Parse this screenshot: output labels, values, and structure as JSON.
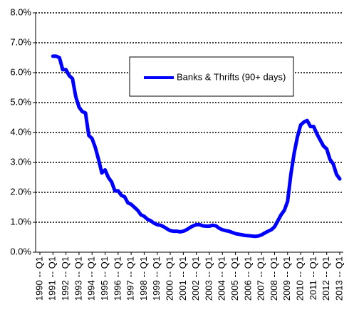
{
  "chart_data": {
    "type": "line",
    "categories": [
      "1990 -- Q1",
      null,
      null,
      null,
      "1991 -- Q1",
      null,
      null,
      null,
      "1992 -- Q1",
      null,
      null,
      null,
      "1993 -- Q1",
      null,
      null,
      null,
      "1994 -- Q1",
      null,
      null,
      null,
      "1995 -- Q1",
      null,
      null,
      null,
      "1996 -- Q1",
      null,
      null,
      null,
      "1997 -- Q1",
      null,
      null,
      null,
      "1998 -- Q1",
      null,
      null,
      null,
      "1999 -- Q1",
      null,
      null,
      null,
      "2000 -- Q1",
      null,
      null,
      null,
      "2001 -- Q1",
      null,
      null,
      null,
      "2002 -- Q1",
      null,
      null,
      null,
      "2003 -- Q1",
      null,
      null,
      null,
      "2004 -- Q1",
      null,
      null,
      null,
      "2005 -- Q1",
      null,
      null,
      null,
      "2006 -- Q1",
      null,
      null,
      null,
      "2007 -- Q1",
      null,
      null,
      null,
      "2008 -- Q1",
      null,
      null,
      null,
      "2009 -- Q1",
      null,
      null,
      null,
      "2010 -- Q1",
      null,
      null,
      null,
      "2011 -- Q1",
      null,
      null,
      null,
      "2012 -- Q1",
      null,
      null,
      null,
      "2013 -- Q1"
    ],
    "series": [
      {
        "name": "Banks & Thrifts (90+ days)",
        "color": "#0000ff",
        "values": [
          null,
          null,
          null,
          null,
          6.55,
          6.55,
          6.5,
          6.1,
          6.1,
          5.9,
          5.8,
          5.2,
          4.85,
          4.7,
          4.65,
          3.9,
          3.8,
          3.5,
          3.1,
          2.65,
          2.75,
          2.5,
          2.35,
          2.05,
          2.05,
          1.9,
          1.85,
          1.65,
          1.6,
          1.5,
          1.4,
          1.25,
          1.2,
          1.1,
          1.05,
          0.97,
          0.92,
          0.9,
          0.85,
          0.78,
          0.72,
          0.7,
          0.7,
          0.68,
          0.7,
          0.75,
          0.82,
          0.88,
          0.92,
          0.92,
          0.88,
          0.87,
          0.87,
          0.9,
          0.88,
          0.8,
          0.75,
          0.72,
          0.7,
          0.66,
          0.62,
          0.6,
          0.58,
          0.56,
          0.55,
          0.54,
          0.53,
          0.54,
          0.58,
          0.64,
          0.7,
          0.75,
          0.85,
          1.05,
          1.25,
          1.4,
          1.7,
          2.6,
          3.3,
          3.85,
          4.25,
          4.35,
          4.4,
          4.2,
          4.2,
          3.95,
          3.75,
          3.55,
          3.45,
          3.1,
          2.95,
          2.6,
          2.45
        ]
      }
    ],
    "ylim": [
      0,
      8
    ],
    "yticks": [
      {
        "value": 0,
        "label": "0.0%"
      },
      {
        "value": 1,
        "label": "1.0%"
      },
      {
        "value": 2,
        "label": "2.0%"
      },
      {
        "value": 3,
        "label": "3.0%"
      },
      {
        "value": 4,
        "label": "4.0%"
      },
      {
        "value": 5,
        "label": "5.0%"
      },
      {
        "value": 6,
        "label": "6.0%"
      },
      {
        "value": 7,
        "label": "7.0%"
      },
      {
        "value": 8,
        "label": "8.0%"
      }
    ],
    "grid": true,
    "legend": "top"
  }
}
